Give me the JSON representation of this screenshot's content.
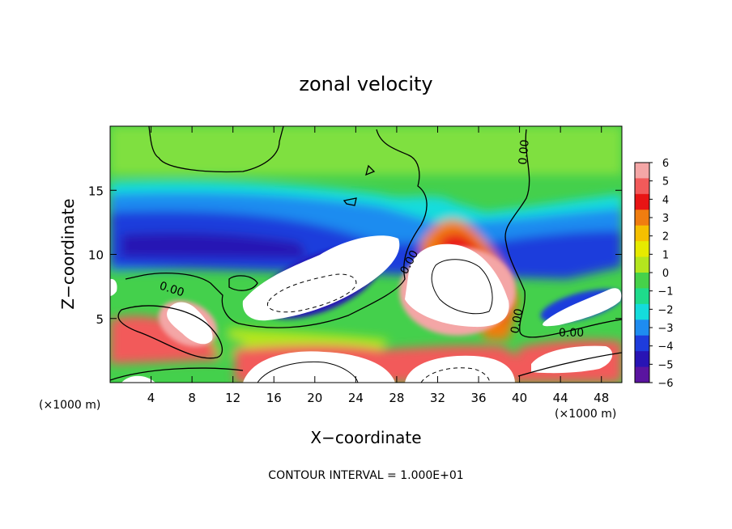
{
  "chart_data": {
    "type": "heatmap",
    "title": "zonal velocity",
    "xlabel": "X−coordinate",
    "ylabel": "Z−coordinate",
    "x_unit": "(×1000 m)",
    "y_unit": "(×1000 m)",
    "xlim": [
      0,
      50
    ],
    "ylim": [
      0,
      20
    ],
    "x_ticks": [
      4,
      8,
      12,
      16,
      20,
      24,
      28,
      32,
      36,
      40,
      44,
      48
    ],
    "y_ticks": [
      5,
      10,
      15
    ],
    "colorbar": {
      "ticks": [
        6,
        5,
        4,
        3,
        2,
        1,
        0,
        -1,
        -2,
        -3,
        -4,
        -5,
        -6
      ],
      "tick_labels": [
        "6",
        "5",
        "4",
        "3",
        "2",
        "1",
        "0",
        "−1",
        "−2",
        "−3",
        "−4",
        "−5",
        "−6"
      ],
      "colors": [
        "#f4a6a6",
        "#f25a5a",
        "#e81414",
        "#f07d10",
        "#f5c000",
        "#e6ea00",
        "#b4e61e",
        "#46d24a",
        "#1edc8c",
        "#14dcdc",
        "#1e8cf0",
        "#1e3cdc",
        "#2814b4",
        "#5a14a0"
      ]
    },
    "contour_label": "0.00",
    "contour_interval": "CONTOUR INTERVAL = 1.000E+01",
    "grid": false
  }
}
